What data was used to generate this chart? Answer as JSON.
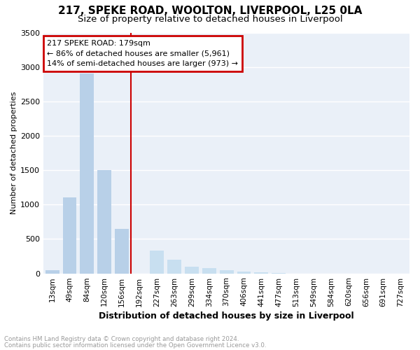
{
  "title1": "217, SPEKE ROAD, WOOLTON, LIVERPOOL, L25 0LA",
  "title2": "Size of property relative to detached houses in Liverpool",
  "xlabel": "Distribution of detached houses by size in Liverpool",
  "ylabel": "Number of detached properties",
  "categories": [
    "13sqm",
    "49sqm",
    "84sqm",
    "120sqm",
    "156sqm",
    "192sqm",
    "227sqm",
    "263sqm",
    "299sqm",
    "334sqm",
    "370sqm",
    "406sqm",
    "441sqm",
    "477sqm",
    "513sqm",
    "549sqm",
    "584sqm",
    "620sqm",
    "656sqm",
    "691sqm",
    "727sqm"
  ],
  "values": [
    50,
    1100,
    2900,
    1500,
    650,
    0,
    330,
    200,
    100,
    80,
    50,
    30,
    20,
    10,
    0,
    0,
    0,
    0,
    0,
    0,
    0
  ],
  "bar_color_left": "#b8d0e8",
  "bar_color_right": "#c8dff0",
  "vline_index": 5,
  "annotation_text": "217 SPEKE ROAD: 179sqm\n← 86% of detached houses are smaller (5,961)\n14% of semi-detached houses are larger (973) →",
  "annotation_box_color": "#cc0000",
  "vline_color": "#cc0000",
  "ylim": [
    0,
    3500
  ],
  "yticks": [
    0,
    500,
    1000,
    1500,
    2000,
    2500,
    3000,
    3500
  ],
  "title1_fontsize": 11,
  "title2_fontsize": 9.5,
  "footnote1": "Contains HM Land Registry data © Crown copyright and database right 2024.",
  "footnote2": "Contains public sector information licensed under the Open Government Licence v3.0.",
  "footnote_color": "#999999",
  "bg_color": "#ffffff",
  "plot_bg_color": "#eaf0f8",
  "grid_color": "#ffffff"
}
